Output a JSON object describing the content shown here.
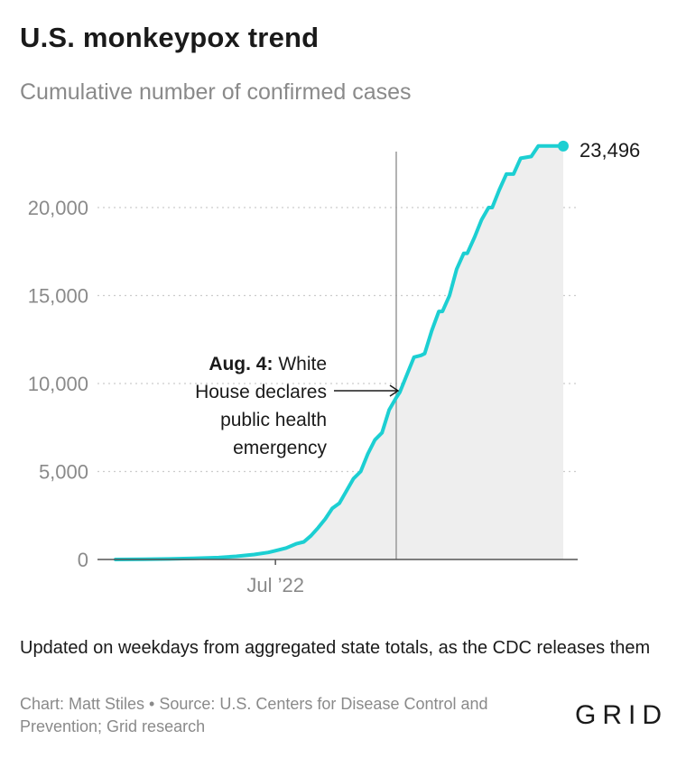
{
  "header": {
    "title": "U.S. monkeypox trend",
    "subtitle": "Cumulative number of confirmed cases"
  },
  "footer": {
    "note": "Updated on weekdays from aggregated state totals, as the CDC releases them",
    "credit": "Chart: Matt Stiles • Source: U.S. Centers for Disease Control and Prevention; Grid research",
    "logo": "GRID"
  },
  "colors": {
    "line": "#1ccfd2",
    "area": "#eeeeee",
    "grid": "#cccccc",
    "annotation_line": "#999999"
  },
  "chart_data": {
    "type": "area",
    "title": "U.S. monkeypox trend",
    "subtitle": "Cumulative number of confirmed cases",
    "x_start": "2022-05-17",
    "x_end": "2022-09-20",
    "x_ticks": [
      {
        "date": "2022-07-01",
        "label": "Jul ’22"
      }
    ],
    "ylim": [
      0,
      24000
    ],
    "y_ticks": [
      {
        "value": 0,
        "label": "0"
      },
      {
        "value": 5000,
        "label": "5,000"
      },
      {
        "value": 10000,
        "label": "10,000"
      },
      {
        "value": 15000,
        "label": "15,000"
      },
      {
        "value": 20000,
        "label": "20,000"
      }
    ],
    "grid": "horizontal dotted",
    "series": [
      {
        "name": "",
        "x": [
          "2022-05-17",
          "2022-05-25",
          "2022-06-01",
          "2022-06-08",
          "2022-06-15",
          "2022-06-20",
          "2022-06-25",
          "2022-06-29",
          "2022-07-01",
          "2022-07-04",
          "2022-07-07",
          "2022-07-09",
          "2022-07-11",
          "2022-07-13",
          "2022-07-15",
          "2022-07-17",
          "2022-07-19",
          "2022-07-21",
          "2022-07-23",
          "2022-07-25",
          "2022-07-27",
          "2022-07-29",
          "2022-07-31",
          "2022-08-02",
          "2022-08-04",
          "2022-08-05",
          "2022-08-07",
          "2022-08-09",
          "2022-08-11",
          "2022-08-12",
          "2022-08-14",
          "2022-08-16",
          "2022-08-17",
          "2022-08-19",
          "2022-08-21",
          "2022-08-23",
          "2022-08-24",
          "2022-08-26",
          "2022-08-28",
          "2022-08-30",
          "2022-08-31",
          "2022-09-02",
          "2022-09-04",
          "2022-09-06",
          "2022-09-08",
          "2022-09-11",
          "2022-09-13",
          "2022-09-15",
          "2022-09-18",
          "2022-09-19",
          "2022-09-20"
        ],
        "values": [
          0,
          10,
          30,
          60,
          110,
          180,
          280,
          400,
          500,
          650,
          900,
          1000,
          1350,
          1800,
          2300,
          2900,
          3200,
          3900,
          4600,
          5000,
          6000,
          6800,
          7200,
          8500,
          9200,
          9500,
          10500,
          11500,
          11600,
          11700,
          13000,
          14100,
          14100,
          15000,
          16500,
          17400,
          17400,
          18300,
          19300,
          20000,
          20000,
          21000,
          21900,
          21900,
          22800,
          22900,
          23496,
          23496,
          23496,
          23496,
          23496
        ]
      }
    ],
    "end_label": {
      "date": "2022-09-20",
      "value": 23496,
      "label": "23,496"
    },
    "annotation": {
      "date": "2022-08-04",
      "bold": "Aug. 4:",
      "text_lines": [
        "White",
        "House declares",
        "public health",
        "emergency"
      ]
    }
  }
}
